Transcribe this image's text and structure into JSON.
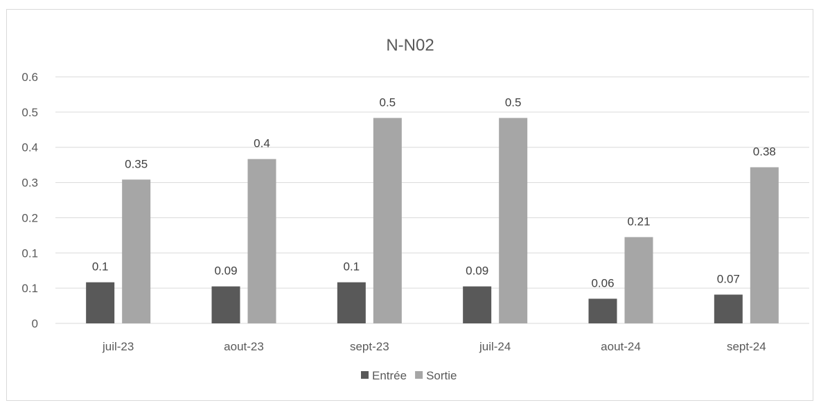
{
  "chart_data": {
    "type": "bar",
    "title": "N-N02",
    "xlabel": "",
    "ylabel": "",
    "categories": [
      "juil-23",
      "aout-23",
      "sept-23",
      "juil-24",
      "aout-24",
      "sept-24"
    ],
    "series": [
      {
        "name": "Entrée",
        "values": [
          0.1,
          0.09,
          0.1,
          0.09,
          0.06,
          0.07
        ],
        "color": "#595959"
      },
      {
        "name": "Sortie",
        "values": [
          0.35,
          0.4,
          0.5,
          0.5,
          0.21,
          0.38
        ],
        "color": "#a6a6a6"
      }
    ],
    "data_labels": [
      [
        "0.1",
        "0.09",
        "0.1",
        "0.09",
        "0.06",
        "0.07"
      ],
      [
        "0.35",
        "0.4",
        "0.5",
        "0.5",
        "0.21",
        "0.38"
      ]
    ],
    "yticks": [
      "0",
      "0.1",
      "0.1",
      "0.2",
      "0.3",
      "0.4",
      "0.5",
      "0.6"
    ],
    "ylim": [
      0,
      0.6
    ],
    "grid": true,
    "gridline_color": "#d9d9d9",
    "legend_position": "bottom"
  }
}
